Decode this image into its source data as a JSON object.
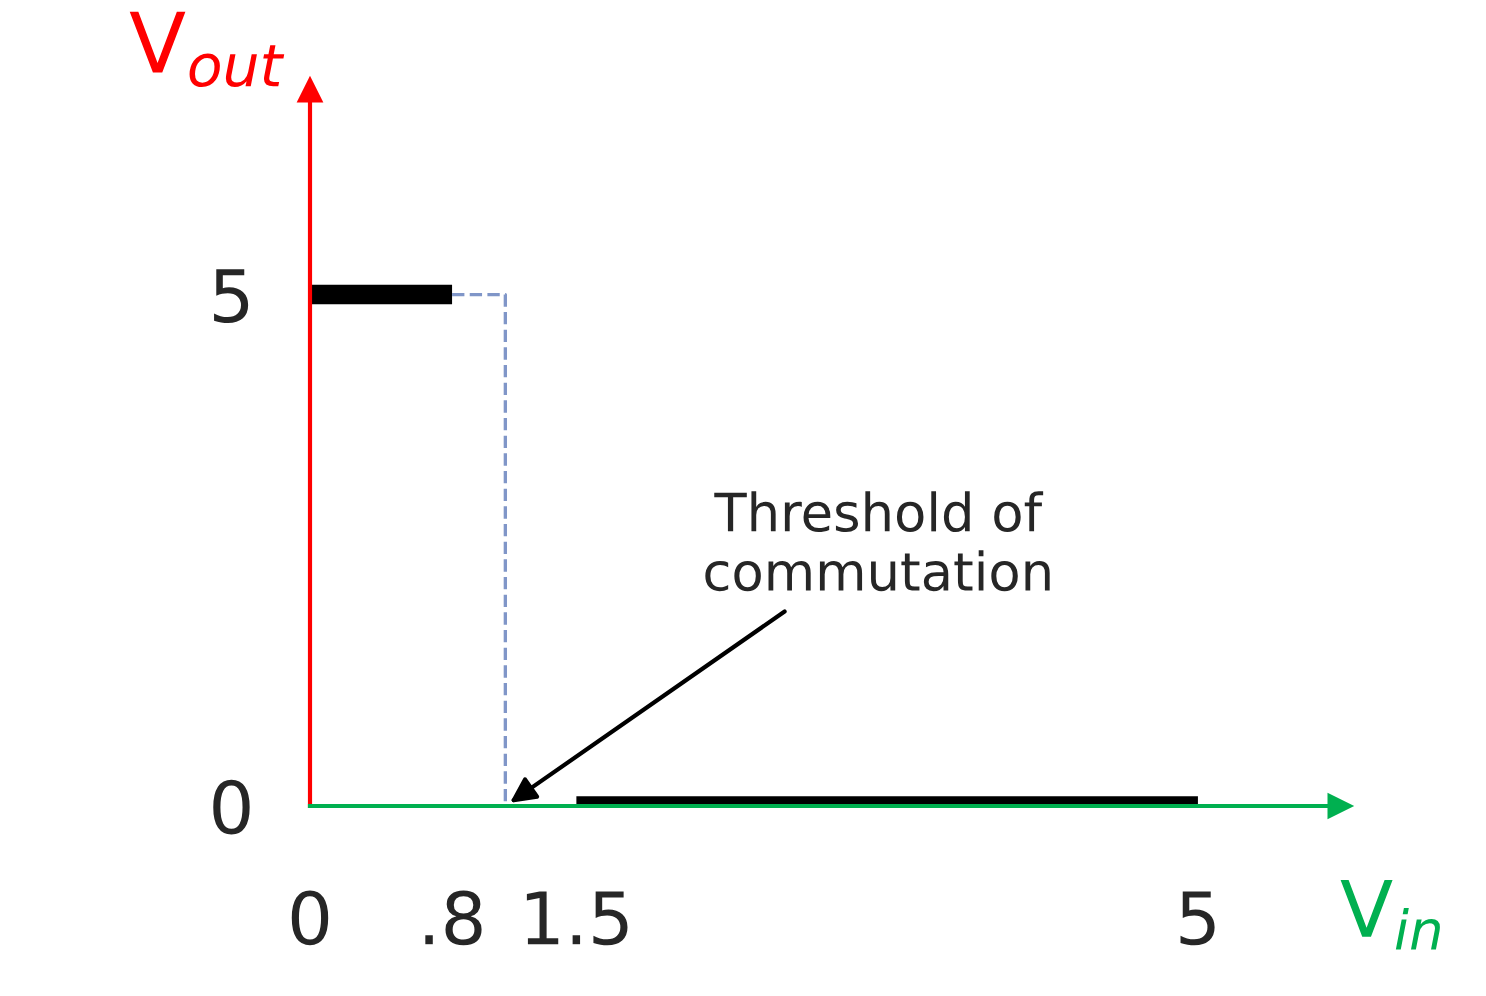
{
  "chart_data": {
    "type": "line",
    "xlabel": "V$_{in}$",
    "ylabel": "V$_{out}$",
    "series": [
      {
        "x": [
          0,
          0.8
        ],
        "values": [
          5,
          5
        ],
        "color": "#000000",
        "line_style": "solid"
      },
      {
        "x": [
          1.5,
          5
        ],
        "values": [
          0,
          0
        ],
        "color": "#000000",
        "line_style": "solid"
      },
      {
        "x": [
          0.8,
          1.1,
          1.1,
          1.5
        ],
        "values": [
          5,
          5,
          0,
          0
        ],
        "color": "#8096c8",
        "line_style": "dashed"
      }
    ],
    "xlim": [
      0,
      5.8
    ],
    "ylim": [
      0,
      7
    ],
    "xticks": [
      0,
      {
        "value": 0.8,
        "label": ".8"
      },
      1.5,
      5
    ],
    "yticks": [
      0,
      5
    ],
    "annotations": [
      {
        "text": "Threshold of\ncommutation",
        "x": 1.1,
        "y": 0
      }
    ],
    "grid": false,
    "legend": false,
    "marker": "none"
  }
}
